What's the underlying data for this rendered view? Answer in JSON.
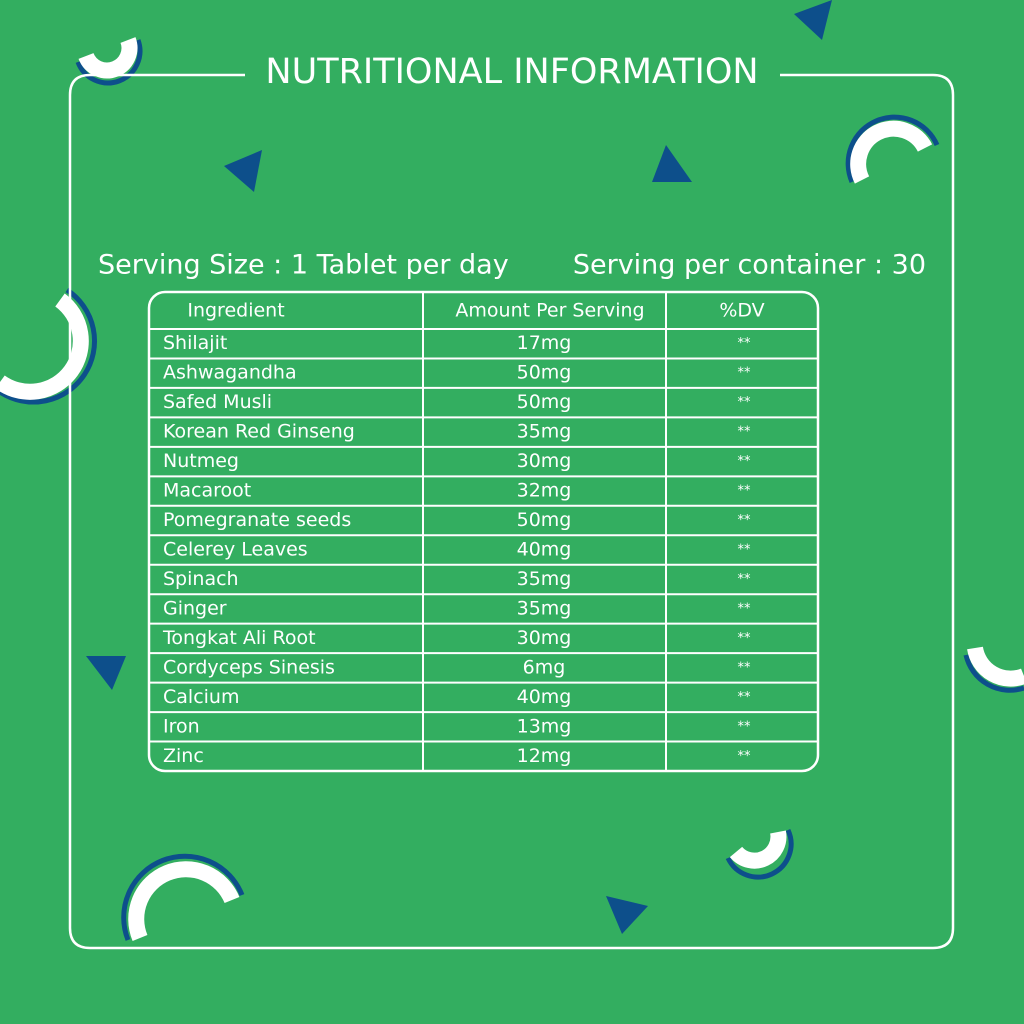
{
  "header": {
    "title": "NUTRITIONAL INFORMATION"
  },
  "serving": {
    "size": "Serving Size : 1 Tablet per day",
    "per_container": "Serving per container : 30"
  },
  "table": {
    "columns": [
      "Ingredient",
      "Amount Per Serving",
      "%DV"
    ],
    "rows": [
      [
        "Shilajit",
        "17mg",
        "**"
      ],
      [
        "Ashwagandha",
        "50mg",
        "**"
      ],
      [
        "Safed Musli",
        "50mg",
        "**"
      ],
      [
        "Korean Red Ginseng",
        "35mg",
        "**"
      ],
      [
        "Nutmeg",
        "30mg",
        "**"
      ],
      [
        "Macaroot",
        "32mg",
        "**"
      ],
      [
        "Pomegranate seeds",
        "50mg",
        "**"
      ],
      [
        "Celerey Leaves",
        "40mg",
        "**"
      ],
      [
        "Spinach",
        "35mg",
        "**"
      ],
      [
        "Ginger",
        "35mg",
        "**"
      ],
      [
        "Tongkat Ali Root",
        "30mg",
        "**"
      ],
      [
        "Cordyceps Sinesis",
        "6mg",
        "**"
      ],
      [
        "Calcium",
        "40mg",
        "**"
      ],
      [
        "Iron",
        "13mg",
        "**"
      ],
      [
        "Zinc",
        "12mg",
        "**"
      ]
    ]
  }
}
